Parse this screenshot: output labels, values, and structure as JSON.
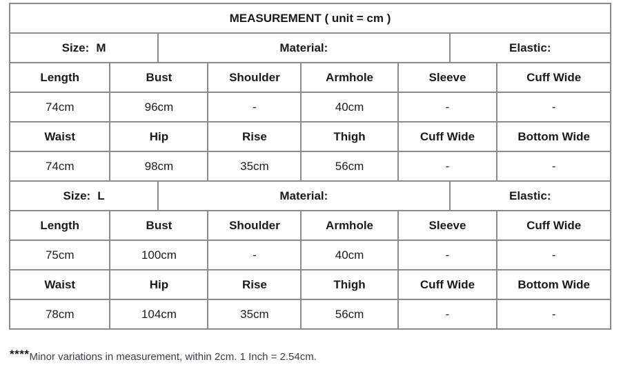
{
  "title": "MEASUREMENT ( unit = cm )",
  "colors": {
    "border": "#8a8a8a",
    "text": "#1a1a1a",
    "note_text": "#3a3a44",
    "background": "#ffffff"
  },
  "sections": [
    {
      "size_label": "Size:",
      "size_value": "M",
      "material_label": "Material:",
      "elastic_label": "Elastic:",
      "rows": [
        [
          "Length",
          "Bust",
          "Shoulder",
          "Armhole",
          "Sleeve",
          "Cuff Wide"
        ],
        [
          "74cm",
          "96cm",
          "-",
          "40cm",
          "-",
          "-"
        ],
        [
          "Waist",
          "Hip",
          "Rise",
          "Thigh",
          "Cuff Wide",
          "Bottom Wide"
        ],
        [
          "74cm",
          "98cm",
          "35cm",
          "56cm",
          "-",
          "-"
        ]
      ]
    },
    {
      "size_label": "Size:",
      "size_value": "L",
      "material_label": "Material:",
      "elastic_label": "Elastic:",
      "rows": [
        [
          "Length",
          "Bust",
          "Shoulder",
          "Armhole",
          "Sleeve",
          "Cuff Wide"
        ],
        [
          "75cm",
          "100cm",
          "-",
          "40cm",
          "-",
          "-"
        ],
        [
          "Waist",
          "Hip",
          "Rise",
          "Thigh",
          "Cuff Wide",
          "Bottom Wide"
        ],
        [
          "78cm",
          "104cm",
          "35cm",
          "56cm",
          "-",
          "-"
        ]
      ]
    }
  ],
  "footnote": {
    "stars": "****",
    "text": "Minor variations in measurement, within 2cm. 1 Inch = 2.54cm."
  }
}
